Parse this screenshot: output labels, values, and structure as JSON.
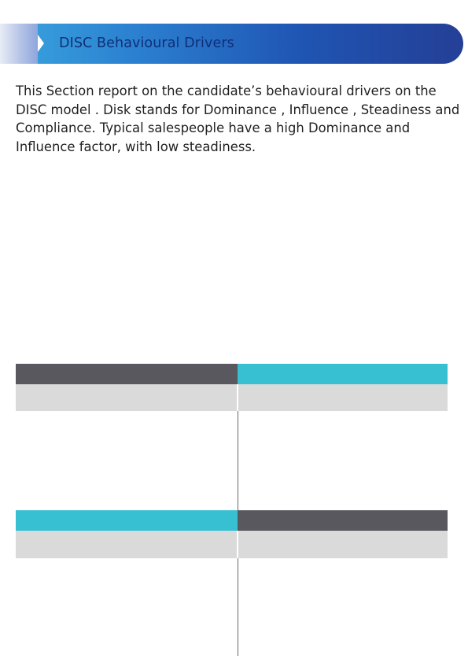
{
  "header": {
    "title": "DISC Behavioural Drivers",
    "accent_color": "#2b5fbf"
  },
  "intro": {
    "text": "This Section report on the candidate’s behavioural drivers on the DISC model . Disk stands for Dominance , Influence , Steadiness and Compliance. Typical salespeople have a high Dominance and Influence factor, with low steadiness."
  },
  "colors": {
    "dark_bar": "#58585e",
    "cyan_bar": "#37bfd2",
    "light_row": "#dadada"
  }
}
